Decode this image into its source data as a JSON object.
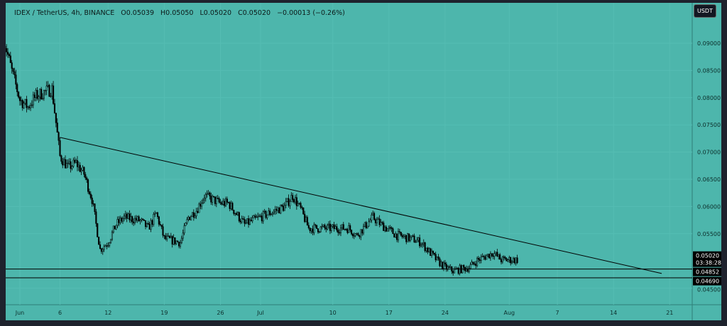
{
  "header": {
    "symbol": "IDEX / TetherUS, 4h, BINANCE",
    "open": "O0.05039",
    "high": "H0.05050",
    "low": "L0.05020",
    "close": "C0.05020",
    "change": "−0.00013 (−0.26%)"
  },
  "currency_button": "USDT",
  "colors": {
    "background": "#4db6ac",
    "candle": "#000000",
    "trendline": "#000000"
  },
  "chart_data": {
    "type": "candlestick",
    "interval": "4h",
    "grid": true,
    "price_ticks": [
      "0.09000",
      "0.08500",
      "0.08000",
      "0.07500",
      "0.07000",
      "0.06500",
      "0.06000",
      "0.05500",
      "0.04500"
    ],
    "x_ticks": [
      "Jun",
      "6",
      "12",
      "19",
      "26",
      "Jul",
      "10",
      "17",
      "24",
      "Aug",
      "7",
      "14",
      "21"
    ],
    "approx_closes": [
      [
        "May 30",
        0.0908
      ],
      [
        "May 31",
        0.0849
      ],
      [
        "Jun 1",
        0.0796
      ],
      [
        "Jun 2",
        0.0783
      ],
      [
        "Jun 3",
        0.0803
      ],
      [
        "Jun 4",
        0.081
      ],
      [
        "Jun 5",
        0.0816
      ],
      [
        "Jun 6",
        0.0692
      ],
      [
        "Jun 7",
        0.0672
      ],
      [
        "Jun 8",
        0.068
      ],
      [
        "Jun 9",
        0.066
      ],
      [
        "Jun 10",
        0.0613
      ],
      [
        "Jun 11",
        0.0521
      ],
      [
        "Jun 12",
        0.0534
      ],
      [
        "Jun 13",
        0.0567
      ],
      [
        "Jun 14",
        0.058
      ],
      [
        "Jun 16",
        0.0574
      ],
      [
        "Jun 17",
        0.056
      ],
      [
        "Jun 18",
        0.0587
      ],
      [
        "Jun 19",
        0.0541
      ],
      [
        "Jun 21",
        0.0534
      ],
      [
        "Jun 22",
        0.058
      ],
      [
        "Jun 23",
        0.0593
      ],
      [
        "Jun 24",
        0.062
      ],
      [
        "Jun 26",
        0.0606
      ],
      [
        "Jun 27",
        0.0606
      ],
      [
        "Jun 29",
        0.0567
      ],
      [
        "Jun 30",
        0.0574
      ],
      [
        "Jul 2",
        0.0587
      ],
      [
        "Jul 4",
        0.06
      ],
      [
        "Jul 5",
        0.062
      ],
      [
        "Jul 6",
        0.0595
      ],
      [
        "Jul 7",
        0.056
      ],
      [
        "Jul 9",
        0.056
      ],
      [
        "Jul 10",
        0.056
      ],
      [
        "Jul 12",
        0.056
      ],
      [
        "Jul 13",
        0.0547
      ],
      [
        "Jul 15",
        0.058
      ],
      [
        "Jul 16",
        0.0567
      ],
      [
        "Jul 18",
        0.0547
      ],
      [
        "Jul 20",
        0.054
      ],
      [
        "Jul 21",
        0.0534
      ],
      [
        "Jul 23",
        0.0501
      ],
      [
        "Jul 24",
        0.0488
      ],
      [
        "Jul 25",
        0.0482
      ],
      [
        "Jul 27",
        0.0488
      ],
      [
        "Jul 28",
        0.0501
      ],
      [
        "Jul 30",
        0.0515
      ],
      [
        "Jul 31",
        0.0502
      ],
      [
        "Aug 1",
        0.0502
      ],
      [
        "Aug 2",
        0.0502
      ]
    ],
    "trendline": {
      "from": [
        "Jun 6",
        0.0727
      ],
      "to": [
        "Aug 20",
        0.0477
      ]
    },
    "horizontal_levels": [
      0.04852,
      0.0469
    ],
    "last_price": "0.05020",
    "countdown": "03:38:28",
    "level_labels": [
      "0.04852",
      "0.04690"
    ]
  }
}
